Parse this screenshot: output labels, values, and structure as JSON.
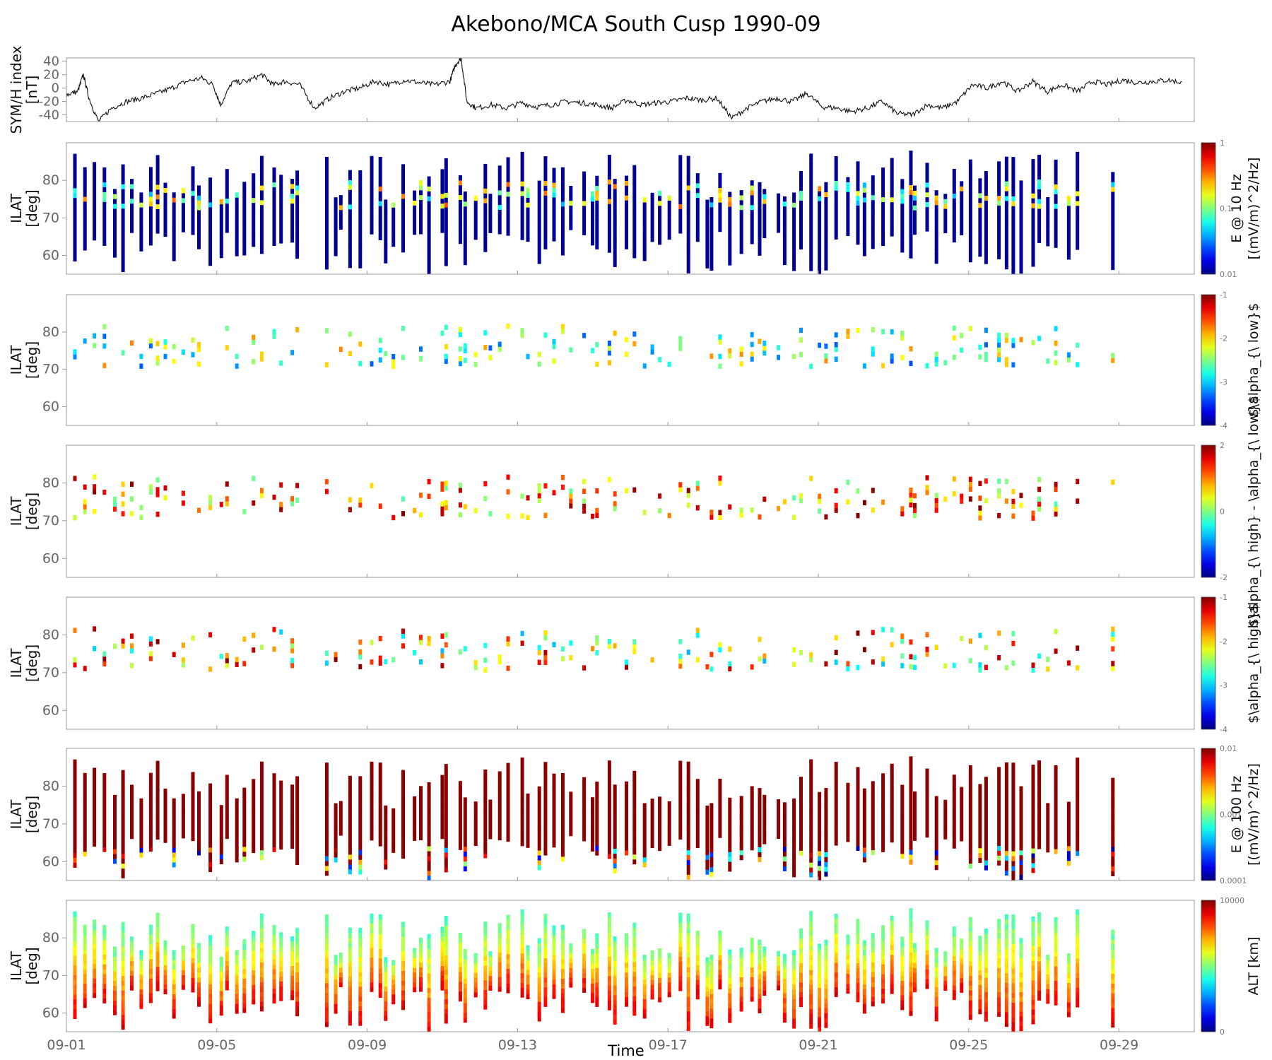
{
  "chart_data": {
    "type": "heatmap",
    "title": "Akebono/MCA South Cusp 1990-09",
    "xlabel": "Time",
    "x_ticks": [
      "09-01",
      "09-05",
      "09-09",
      "09-13",
      "09-17",
      "09-21",
      "09-25",
      "09-29"
    ],
    "x_range_days": [
      1,
      31
    ],
    "panels": [
      {
        "id": "symh",
        "type": "line",
        "ylabel": [
          "SYM/H index",
          "[nT]"
        ],
        "ylim": [
          -50,
          45
        ],
        "y_ticks": [
          "40",
          "20",
          "0",
          "-20",
          "-40"
        ],
        "series": [
          {
            "x": [
              1.0,
              1.3,
              1.45,
              1.6,
              1.85,
              2.2,
              2.6,
              3.0,
              3.4,
              3.8,
              4.2,
              4.6,
              4.9,
              5.1,
              5.4,
              5.8,
              6.2,
              6.5,
              6.8,
              7.2,
              7.6,
              8.0,
              8.4,
              8.8,
              9.2,
              9.6,
              10.0,
              10.4,
              10.8,
              11.2,
              11.35,
              11.5,
              11.65,
              11.9,
              12.3,
              12.7,
              13.1,
              13.5,
              13.9,
              14.3,
              14.7,
              15.1,
              15.5,
              15.9,
              16.3,
              16.7,
              17.1,
              17.5,
              17.9,
              18.3,
              18.7,
              19.1,
              19.5,
              19.9,
              20.3,
              20.7,
              21.1,
              21.5,
              21.9,
              22.3,
              22.7,
              23.1,
              23.5,
              23.9,
              24.3,
              24.7,
              25.1,
              25.5,
              25.9,
              26.3,
              26.7,
              27.1,
              27.5,
              27.9,
              28.3,
              28.7,
              29.1,
              29.5,
              29.9,
              30.3,
              30.7
            ],
            "y": [
              -10,
              -5,
              20,
              -15,
              -50,
              -30,
              -20,
              -15,
              -8,
              0,
              10,
              15,
              5,
              -25,
              8,
              10,
              20,
              5,
              10,
              5,
              -30,
              -15,
              -5,
              0,
              10,
              5,
              12,
              8,
              5,
              10,
              35,
              45,
              -20,
              -30,
              -25,
              -30,
              -22,
              -28,
              -25,
              -20,
              -22,
              -25,
              -30,
              -18,
              -25,
              -22,
              -20,
              -15,
              -18,
              -15,
              -45,
              -30,
              -20,
              -15,
              -20,
              -8,
              -28,
              -30,
              -35,
              -30,
              -20,
              -38,
              -40,
              -25,
              -30,
              -20,
              5,
              0,
              10,
              -5,
              10,
              -5,
              5,
              -5,
              10,
              5,
              12,
              8,
              10,
              12,
              8
            ]
          }
        ]
      },
      {
        "id": "e10",
        "type": "heatmap",
        "ylabel": [
          "ILAT",
          "[deg]"
        ],
        "ylim": [
          55,
          90
        ],
        "y_ticks": [
          "80",
          "70",
          "60"
        ],
        "colorbar": {
          "label": [
            "E @ 10 Hz",
            "[(mV/m)^2/Hz]"
          ],
          "ticks": [
            "1",
            "0.1",
            "0.01"
          ],
          "scale": "log"
        },
        "approx_pass_count": 120,
        "dominant_value": "0.01"
      },
      {
        "id": "alow",
        "type": "heatmap",
        "ylabel": [
          "ILAT",
          "[deg]"
        ],
        "ylim": [
          55,
          90
        ],
        "y_ticks": [
          "80",
          "70",
          "60"
        ],
        "colorbar": {
          "label": [
            "$\\alpha_{\\ low}$"
          ],
          "ticks": [
            "-1",
            "-2",
            "-3",
            "-4"
          ],
          "scale": "linear"
        }
      },
      {
        "id": "adiff",
        "type": "heatmap",
        "ylabel": [
          "ILAT",
          "[deg]"
        ],
        "ylim": [
          55,
          90
        ],
        "y_ticks": [
          "80",
          "70",
          "60"
        ],
        "colorbar": {
          "label": [
            "$\\alpha_{\\ high} - \\alpha_{\\ low}$"
          ],
          "ticks": [
            "2",
            "0",
            "-2"
          ],
          "scale": "linear"
        }
      },
      {
        "id": "ahigh",
        "type": "heatmap",
        "ylabel": [
          "ILAT",
          "[deg]"
        ],
        "ylim": [
          55,
          90
        ],
        "y_ticks": [
          "80",
          "70",
          "60"
        ],
        "colorbar": {
          "label": [
            "$\\alpha_{\\ high}$"
          ],
          "ticks": [
            "-1",
            "-2",
            "-3",
            "-4"
          ],
          "scale": "linear"
        }
      },
      {
        "id": "e100",
        "type": "heatmap",
        "ylabel": [
          "ILAT",
          "[deg]"
        ],
        "ylim": [
          55,
          90
        ],
        "y_ticks": [
          "80",
          "70",
          "60"
        ],
        "colorbar": {
          "label": [
            "E @ 100 Hz",
            "[(mV/m)^2/Hz]"
          ],
          "ticks": [
            "0.01",
            "0.001",
            "0.0001"
          ],
          "scale": "log"
        },
        "dominant_value": "0.01"
      },
      {
        "id": "alt",
        "type": "heatmap",
        "ylabel": [
          "ILAT",
          "[deg]"
        ],
        "ylim": [
          55,
          90
        ],
        "y_ticks": [
          "80",
          "70",
          "60"
        ],
        "colorbar": {
          "label": [
            "ALT [km]"
          ],
          "ticks": [
            "10000",
            "0"
          ],
          "scale": "linear"
        }
      }
    ]
  }
}
